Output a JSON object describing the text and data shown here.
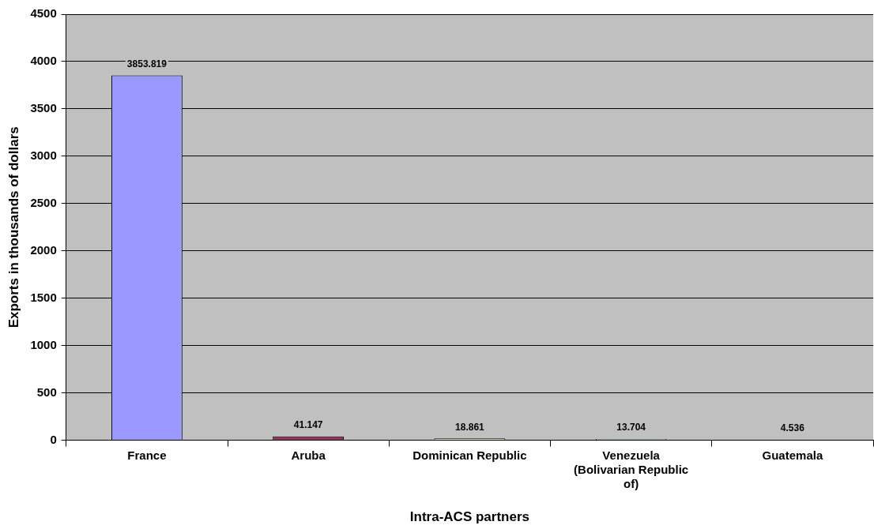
{
  "chart_data": {
    "type": "bar",
    "xlabel": "Intra-ACS partners",
    "ylabel": "Exports in thousands of dollars",
    "categories": [
      "France",
      "Aruba",
      "Dominican Republic",
      "Venezuela (Bolivarian Republic of)",
      "Guatemala"
    ],
    "values": [
      3853.819,
      41.147,
      18.861,
      13.704,
      4.536
    ],
    "colors": [
      "#9999ff",
      "#993366",
      "#ffffcc",
      "#ccffff",
      "#660066"
    ],
    "ylim": [
      0,
      4500
    ],
    "yticks": [
      0,
      500,
      1000,
      1500,
      2000,
      2500,
      3000,
      3500,
      4000,
      4500
    ],
    "grid": "y",
    "data_labels": true
  }
}
